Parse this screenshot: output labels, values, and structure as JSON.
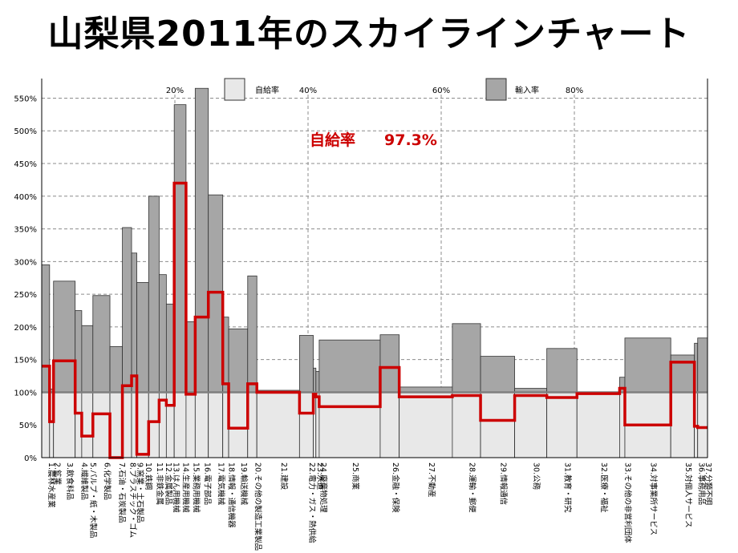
{
  "title": "山梨県2011年のスカイラインチャート",
  "self_sufficiency_label": "自給率",
  "self_sufficiency_value": "97.3%",
  "legend": [
    {
      "label": "自給率",
      "color": "#e8e8e8"
    },
    {
      "label": "輸入率",
      "color": "#a6a6a6"
    }
  ],
  "colors": {
    "self_line": "#cc0000",
    "import_fill": "#a6a6a6",
    "self_fill": "#e8e8e8",
    "ref_line": "#7f7f7f"
  },
  "chart_data": {
    "type": "bar",
    "subtype": "skyline",
    "y_axis": {
      "ticks": [
        "0%",
        "50%",
        "100%",
        "150%",
        "200%",
        "250%",
        "300%",
        "350%",
        "400%",
        "450%",
        "500%",
        "550%"
      ],
      "ylim": [
        0,
        580
      ]
    },
    "x_axis": {
      "ticks": [
        "20%",
        "40%",
        "60%",
        "80%"
      ],
      "xlim": [
        0,
        100
      ]
    },
    "reference_line": 100,
    "grid": true,
    "sectors": [
      {
        "label": "1.農林水産業",
        "share": 1.2,
        "total": 295,
        "self": 140
      },
      {
        "label": "2.鉱業",
        "share": 0.6,
        "total": 105,
        "self": 55
      },
      {
        "label": "3.飲食料品",
        "share": 3.3,
        "total": 270,
        "self": 148
      },
      {
        "label": "4.繊維製品",
        "share": 1.0,
        "total": 225,
        "self": 68
      },
      {
        "label": "5.パルプ・紙・木製品",
        "share": 1.7,
        "total": 202,
        "self": 33
      },
      {
        "label": "6.化学製品",
        "share": 2.6,
        "total": 248,
        "self": 67
      },
      {
        "label": "7.石油・石炭製品",
        "share": 1.9,
        "total": 170,
        "self": 0
      },
      {
        "label": "8.プラスチック・ゴム",
        "share": 1.4,
        "total": 352,
        "self": 110
      },
      {
        "label": "9.窯業・土石製品",
        "share": 0.8,
        "total": 313,
        "self": 125
      },
      {
        "label": "10.鉄鋼",
        "share": 1.8,
        "total": 268,
        "self": 5
      },
      {
        "label": "11.非鉄金属",
        "share": 1.6,
        "total": 400,
        "self": 55
      },
      {
        "label": "12.金属製品",
        "share": 1.1,
        "total": 280,
        "self": 88
      },
      {
        "label": "13.はん用機械",
        "share": 1.2,
        "total": 235,
        "self": 80
      },
      {
        "label": "14.生産用機械",
        "share": 1.8,
        "total": 540,
        "self": 420
      },
      {
        "label": "15.業務用機械",
        "share": 1.4,
        "total": 208,
        "self": 97
      },
      {
        "label": "16.電子部品",
        "share": 2.0,
        "total": 565,
        "self": 215
      },
      {
        "label": "17.電気機械",
        "share": 2.2,
        "total": 402,
        "self": 253
      },
      {
        "label": "18.情報・通信機器",
        "share": 0.9,
        "total": 215,
        "self": 113
      },
      {
        "label": "19.輸送機械",
        "share": 2.9,
        "total": 197,
        "self": 45
      },
      {
        "label": "20.その他の製造工業製品",
        "share": 1.4,
        "total": 278,
        "self": 113
      },
      {
        "label": "21.建設",
        "share": 6.5,
        "total": 103,
        "self": 100
      },
      {
        "label": "22.電力・ガス・熱供給",
        "share": 2.1,
        "total": 187,
        "self": 68
      },
      {
        "label": "23.水道",
        "share": 0.4,
        "total": 137,
        "self": 97
      },
      {
        "label": "24.廃棄物処理",
        "share": 0.5,
        "total": 132,
        "self": 93
      },
      {
        "label": "25.商業",
        "share": 9.3,
        "total": 180,
        "self": 78
      },
      {
        "label": "26.金融・保険",
        "share": 2.9,
        "total": 188,
        "self": 138
      },
      {
        "label": "27.不動産",
        "share": 8.1,
        "total": 108,
        "self": 93
      },
      {
        "label": "28.運輸・郵便",
        "share": 4.3,
        "total": 205,
        "self": 95
      },
      {
        "label": "29.情報通信",
        "share": 5.2,
        "total": 155,
        "self": 57
      },
      {
        "label": "30.公務",
        "share": 4.9,
        "total": 106,
        "self": 95
      },
      {
        "label": "31.教育・研究",
        "share": 4.6,
        "total": 167,
        "self": 92
      },
      {
        "label": "32.医療・福祉",
        "share": 6.5,
        "total": 100,
        "self": 98
      },
      {
        "label": "33.その他の非営利団体",
        "share": 0.8,
        "total": 123,
        "self": 106
      },
      {
        "label": "34.対事業所サービス",
        "share": 7.0,
        "total": 183,
        "self": 50
      },
      {
        "label": "35.対個人サービス",
        "share": 3.6,
        "total": 157,
        "self": 146
      },
      {
        "label": "36.事務用品",
        "share": 0.5,
        "total": 175,
        "self": 48
      },
      {
        "label": "37.分類不明",
        "share": 1.5,
        "total": 183,
        "self": 46
      }
    ]
  }
}
